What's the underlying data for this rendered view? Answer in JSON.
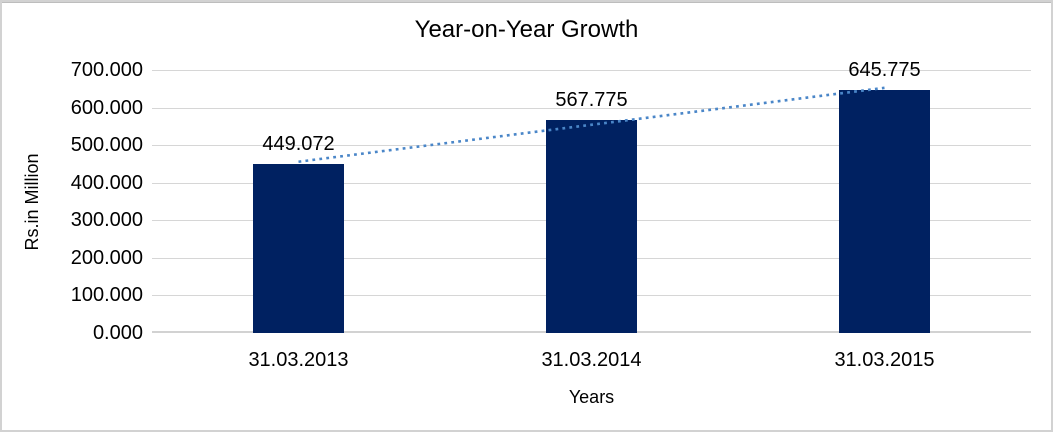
{
  "window": {
    "background": "#ffffff",
    "border_color": "#d2d2d2"
  },
  "chart_data": {
    "type": "bar",
    "title": "Year-on-Year Growth",
    "xlabel": "Years",
    "ylabel": "Rs.in Million",
    "categories": [
      "31.03.2013",
      "31.03.2014",
      "31.03.2015"
    ],
    "values": [
      449.072,
      567.775,
      645.775
    ],
    "value_labels": [
      "449.072",
      "567.775",
      "645.775"
    ],
    "ylim": [
      0,
      700
    ],
    "y_tick_step": 100,
    "y_ticks": [
      0,
      100,
      200,
      300,
      400,
      500,
      600,
      700
    ],
    "y_tick_labels": [
      "0.000",
      "100.000",
      "200.000",
      "300.000",
      "400.000",
      "500.000",
      "600.000",
      "700.000"
    ],
    "grid": true,
    "legend_position": "none",
    "trendline": {
      "type": "linear",
      "style": "dotted"
    },
    "colors": {
      "bar": "#002161",
      "trendline": "#4a86c8",
      "gridline": "#d6d6d6",
      "axis_line": "#d2d2d2",
      "text": "#000000"
    }
  }
}
